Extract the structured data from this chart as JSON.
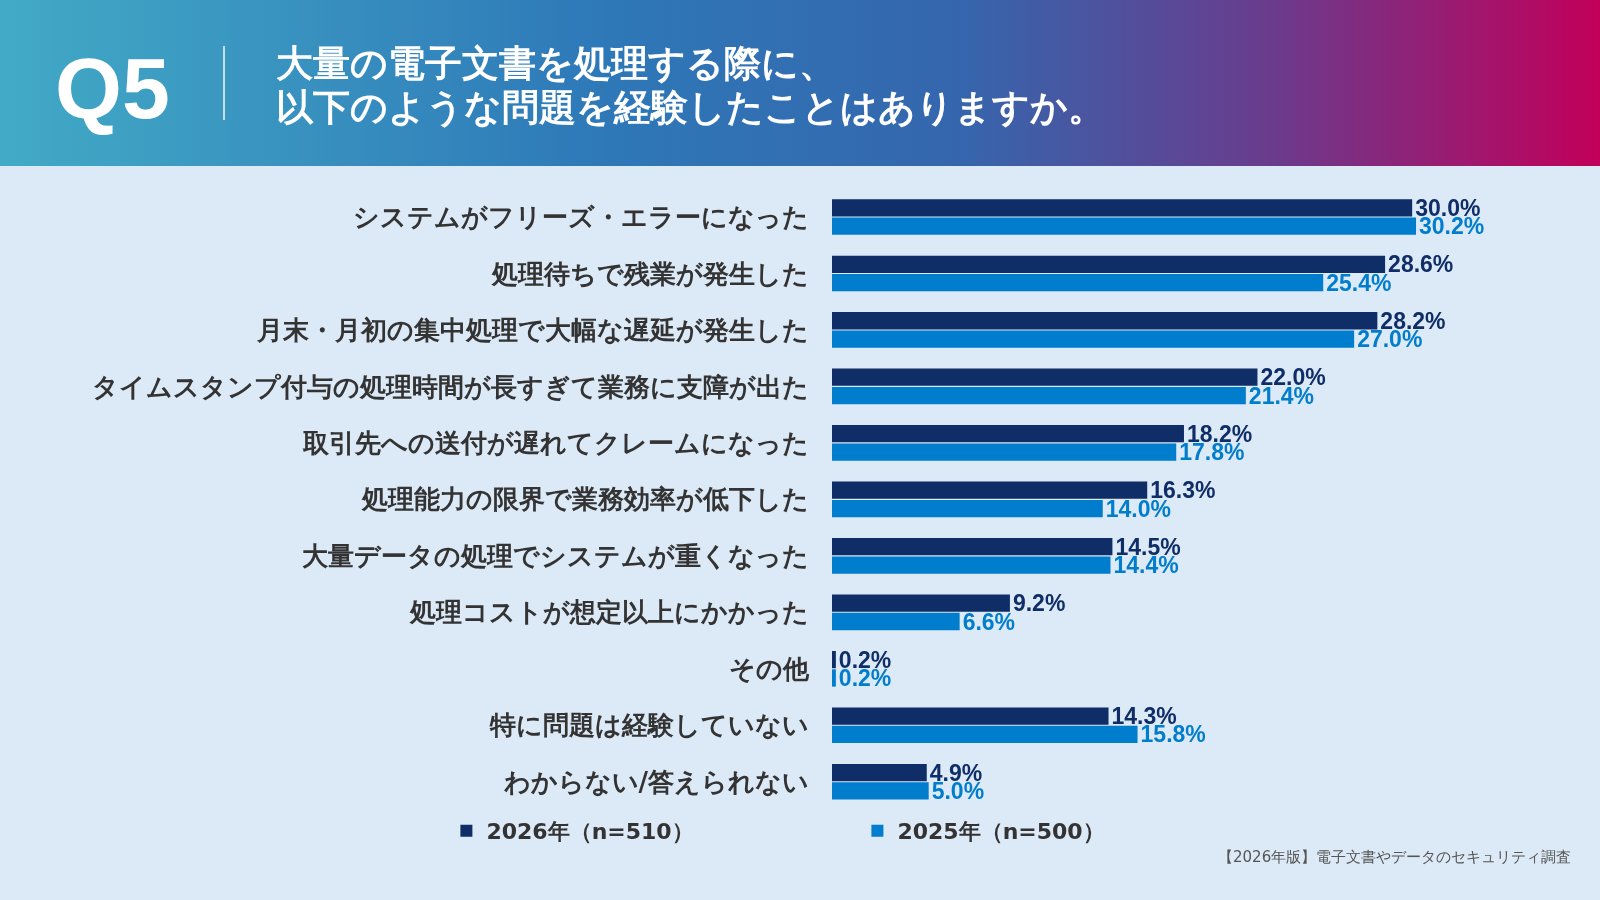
{
  "chart_data": {
    "type": "bar",
    "orientation": "horizontal",
    "title": "大量の電子文書を処理する際に、以下のような問題を経験したことはありますか。",
    "annotations": [
      "Q5",
      "【2026年版】電子文書やデータのセキュリティ調査"
    ],
    "categories": [
      "システムがフリーズ・エラーになった",
      "処理待ちで残業が発生した",
      "月末・月初の集中処理で大幅な遅延が発生した",
      "タイムスタンプ付与の処理時間が長すぎて業務に支障が出た",
      "取引先への送付が遅れてクレームになった",
      "処理能力の限界で業務効率が低下した",
      "大量データの処理でシステムが重くなった",
      "処理コストが想定以上にかかった",
      "その他",
      "特に問題は経験していない",
      "わからない/答えられない"
    ],
    "series": [
      {
        "name": "2026年（n=510）",
        "color": "#0f2d66",
        "values": [
          30.0,
          28.6,
          28.2,
          22.0,
          18.2,
          16.3,
          14.5,
          9.2,
          0.2,
          14.3,
          4.9
        ],
        "value_labels": [
          "30.0%",
          "28.6%",
          "28.2%",
          "22.0%",
          "18.2%",
          "16.3%",
          "14.5%",
          "9.2%",
          "0.2%",
          "14.3%",
          "4.9%"
        ]
      },
      {
        "name": "2025年（n=500）",
        "color": "#007dcc",
        "values": [
          30.2,
          25.4,
          27.0,
          21.4,
          17.8,
          14.0,
          14.4,
          6.6,
          0.2,
          15.8,
          5.0
        ],
        "value_labels": [
          "30.2%",
          "25.4%",
          "27.0%",
          "21.4%",
          "17.8%",
          "14.0%",
          "14.4%",
          "6.6%",
          "0.2%",
          "15.8%",
          "5.0%"
        ]
      }
    ],
    "legend": "bottom",
    "tick_labels": "y"
  }
}
